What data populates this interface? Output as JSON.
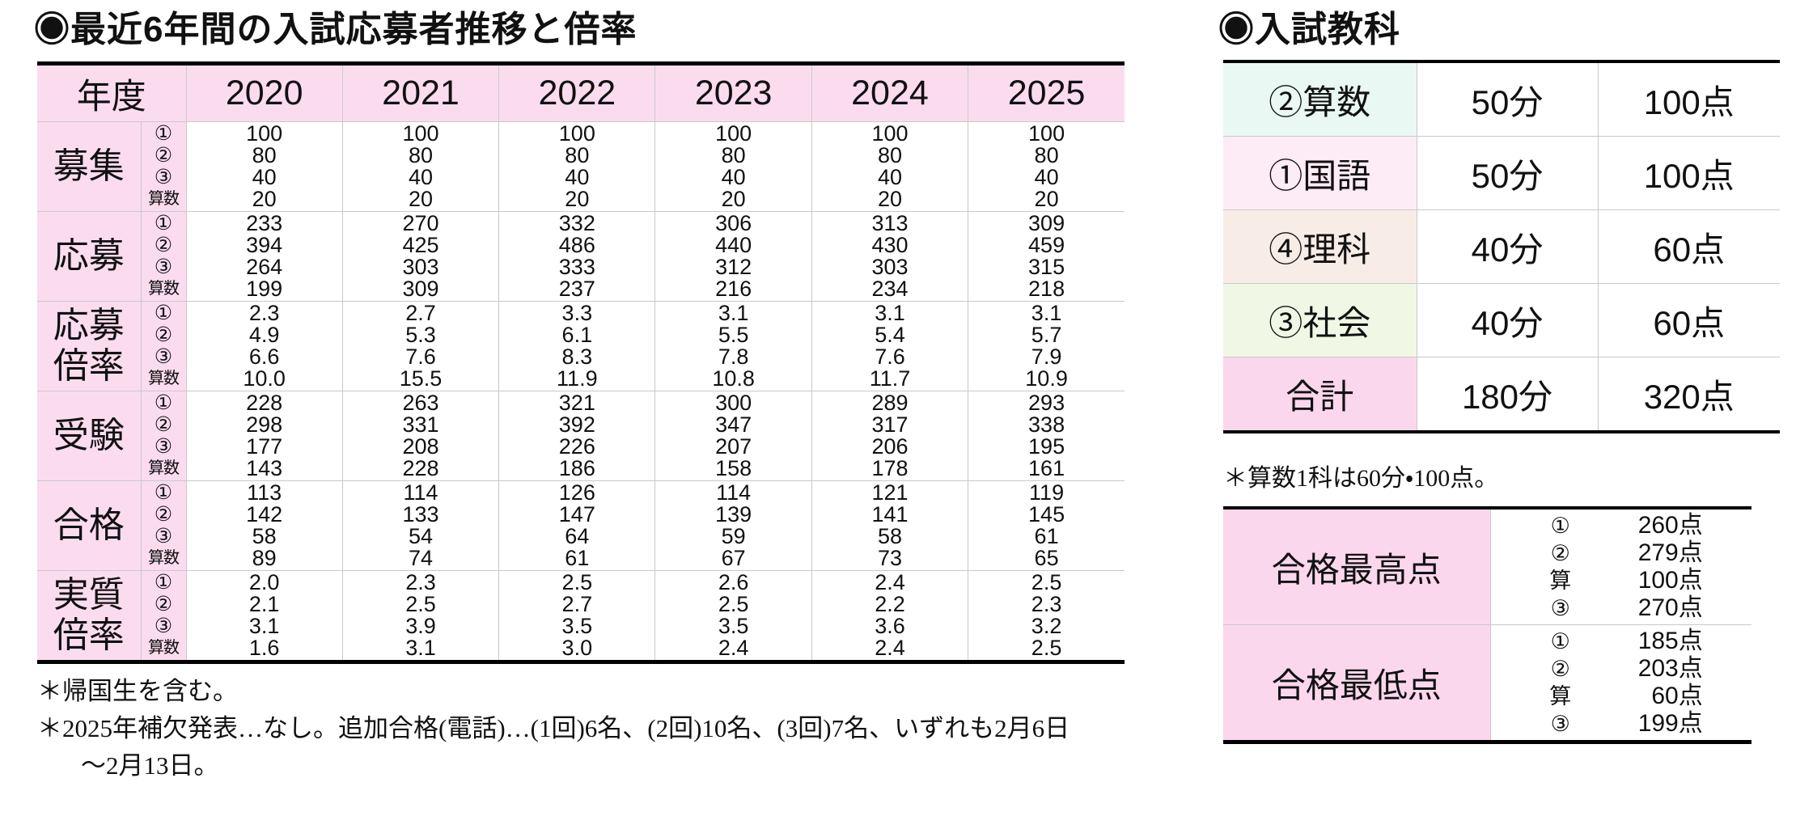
{
  "colors": {
    "table_pink": "#fbdcef",
    "strong_pink": "#fbd7ed",
    "grid_gray": "#c9c9c9",
    "subject_row_bg": {
      "math": "#e9f8f2",
      "japanese": "#fdebf6",
      "science": "#f8ece7",
      "social": "#f0f8e5",
      "total": "#fbd7ed"
    }
  },
  "left": {
    "title": "◉最近6年間の入試応募者推移と倍率",
    "table": {
      "year_header_label": "年度",
      "years": [
        "2020",
        "2021",
        "2022",
        "2023",
        "2024",
        "2025"
      ],
      "sub_labels": [
        "①",
        "②",
        "③",
        "算数"
      ],
      "rows": [
        {
          "key": "recruitment",
          "label_lines": [
            "募集"
          ],
          "values": [
            [
              "100",
              "80",
              "40",
              "20"
            ],
            [
              "100",
              "80",
              "40",
              "20"
            ],
            [
              "100",
              "80",
              "40",
              "20"
            ],
            [
              "100",
              "80",
              "40",
              "20"
            ],
            [
              "100",
              "80",
              "40",
              "20"
            ],
            [
              "100",
              "80",
              "40",
              "20"
            ]
          ]
        },
        {
          "key": "applications",
          "label_lines": [
            "応募"
          ],
          "values": [
            [
              "233",
              "394",
              "264",
              "199"
            ],
            [
              "270",
              "425",
              "303",
              "309"
            ],
            [
              "332",
              "486",
              "333",
              "237"
            ],
            [
              "306",
              "440",
              "312",
              "216"
            ],
            [
              "313",
              "430",
              "303",
              "234"
            ],
            [
              "309",
              "459",
              "315",
              "218"
            ]
          ]
        },
        {
          "key": "application-ratio",
          "label_lines": [
            "応募",
            "倍率"
          ],
          "values": [
            [
              "2.3",
              "4.9",
              "6.6",
              "10.0"
            ],
            [
              "2.7",
              "5.3",
              "7.6",
              "15.5"
            ],
            [
              "3.3",
              "6.1",
              "8.3",
              "11.9"
            ],
            [
              "3.1",
              "5.5",
              "7.8",
              "10.8"
            ],
            [
              "3.1",
              "5.4",
              "7.6",
              "11.7"
            ],
            [
              "3.1",
              "5.7",
              "7.9",
              "10.9"
            ]
          ]
        },
        {
          "key": "examinees",
          "label_lines": [
            "受験"
          ],
          "values": [
            [
              "228",
              "298",
              "177",
              "143"
            ],
            [
              "263",
              "331",
              "208",
              "228"
            ],
            [
              "321",
              "392",
              "226",
              "186"
            ],
            [
              "300",
              "347",
              "207",
              "158"
            ],
            [
              "289",
              "317",
              "206",
              "178"
            ],
            [
              "293",
              "338",
              "195",
              "161"
            ]
          ]
        },
        {
          "key": "accepted",
          "label_lines": [
            "合格"
          ],
          "values": [
            [
              "113",
              "142",
              "58",
              "89"
            ],
            [
              "114",
              "133",
              "54",
              "74"
            ],
            [
              "126",
              "147",
              "64",
              "61"
            ],
            [
              "114",
              "139",
              "59",
              "67"
            ],
            [
              "121",
              "141",
              "58",
              "73"
            ],
            [
              "119",
              "145",
              "61",
              "65"
            ]
          ]
        },
        {
          "key": "actual-ratio",
          "label_lines": [
            "実質",
            "倍率"
          ],
          "values": [
            [
              "2.0",
              "2.1",
              "3.1",
              "1.6"
            ],
            [
              "2.3",
              "2.5",
              "3.9",
              "3.1"
            ],
            [
              "2.5",
              "2.7",
              "3.5",
              "3.0"
            ],
            [
              "2.6",
              "2.5",
              "3.5",
              "2.4"
            ],
            [
              "2.4",
              "2.2",
              "3.6",
              "2.4"
            ],
            [
              "2.5",
              "2.3",
              "3.2",
              "2.5"
            ]
          ]
        }
      ]
    },
    "footnotes": [
      "＊帰国生を含む。",
      "＊2025年補欠発表…なし。追加合格(電話)…(1回)6名、(2回)10名、(3回)7名、いずれも2月6日",
      "～2月13日。"
    ]
  },
  "right": {
    "title": "◉入試教科",
    "subjects": [
      {
        "key": "math",
        "label": "②算数",
        "time": "50分",
        "points": "100点"
      },
      {
        "key": "japanese",
        "label": "①国語",
        "time": "50分",
        "points": "100点"
      },
      {
        "key": "science",
        "label": "④理科",
        "time": "40分",
        "points": "60点"
      },
      {
        "key": "social",
        "label": "③社会",
        "time": "40分",
        "points": "60点"
      },
      {
        "key": "total",
        "label": "合計",
        "time": "180分",
        "points": "320点"
      }
    ],
    "note": "＊算数1科は60分・100点。",
    "scores": [
      {
        "key": "max-score",
        "label": "合格最高点",
        "items": [
          {
            "mark": "①",
            "value": "260点"
          },
          {
            "mark": "②",
            "value": "279点"
          },
          {
            "mark": "算",
            "value": "100点"
          },
          {
            "mark": "③",
            "value": "270点"
          }
        ]
      },
      {
        "key": "min-score",
        "label": "合格最低点",
        "items": [
          {
            "mark": "①",
            "value": "185点"
          },
          {
            "mark": "②",
            "value": "203点"
          },
          {
            "mark": "算",
            "value": "60点"
          },
          {
            "mark": "③",
            "value": "199点"
          }
        ]
      }
    ]
  }
}
